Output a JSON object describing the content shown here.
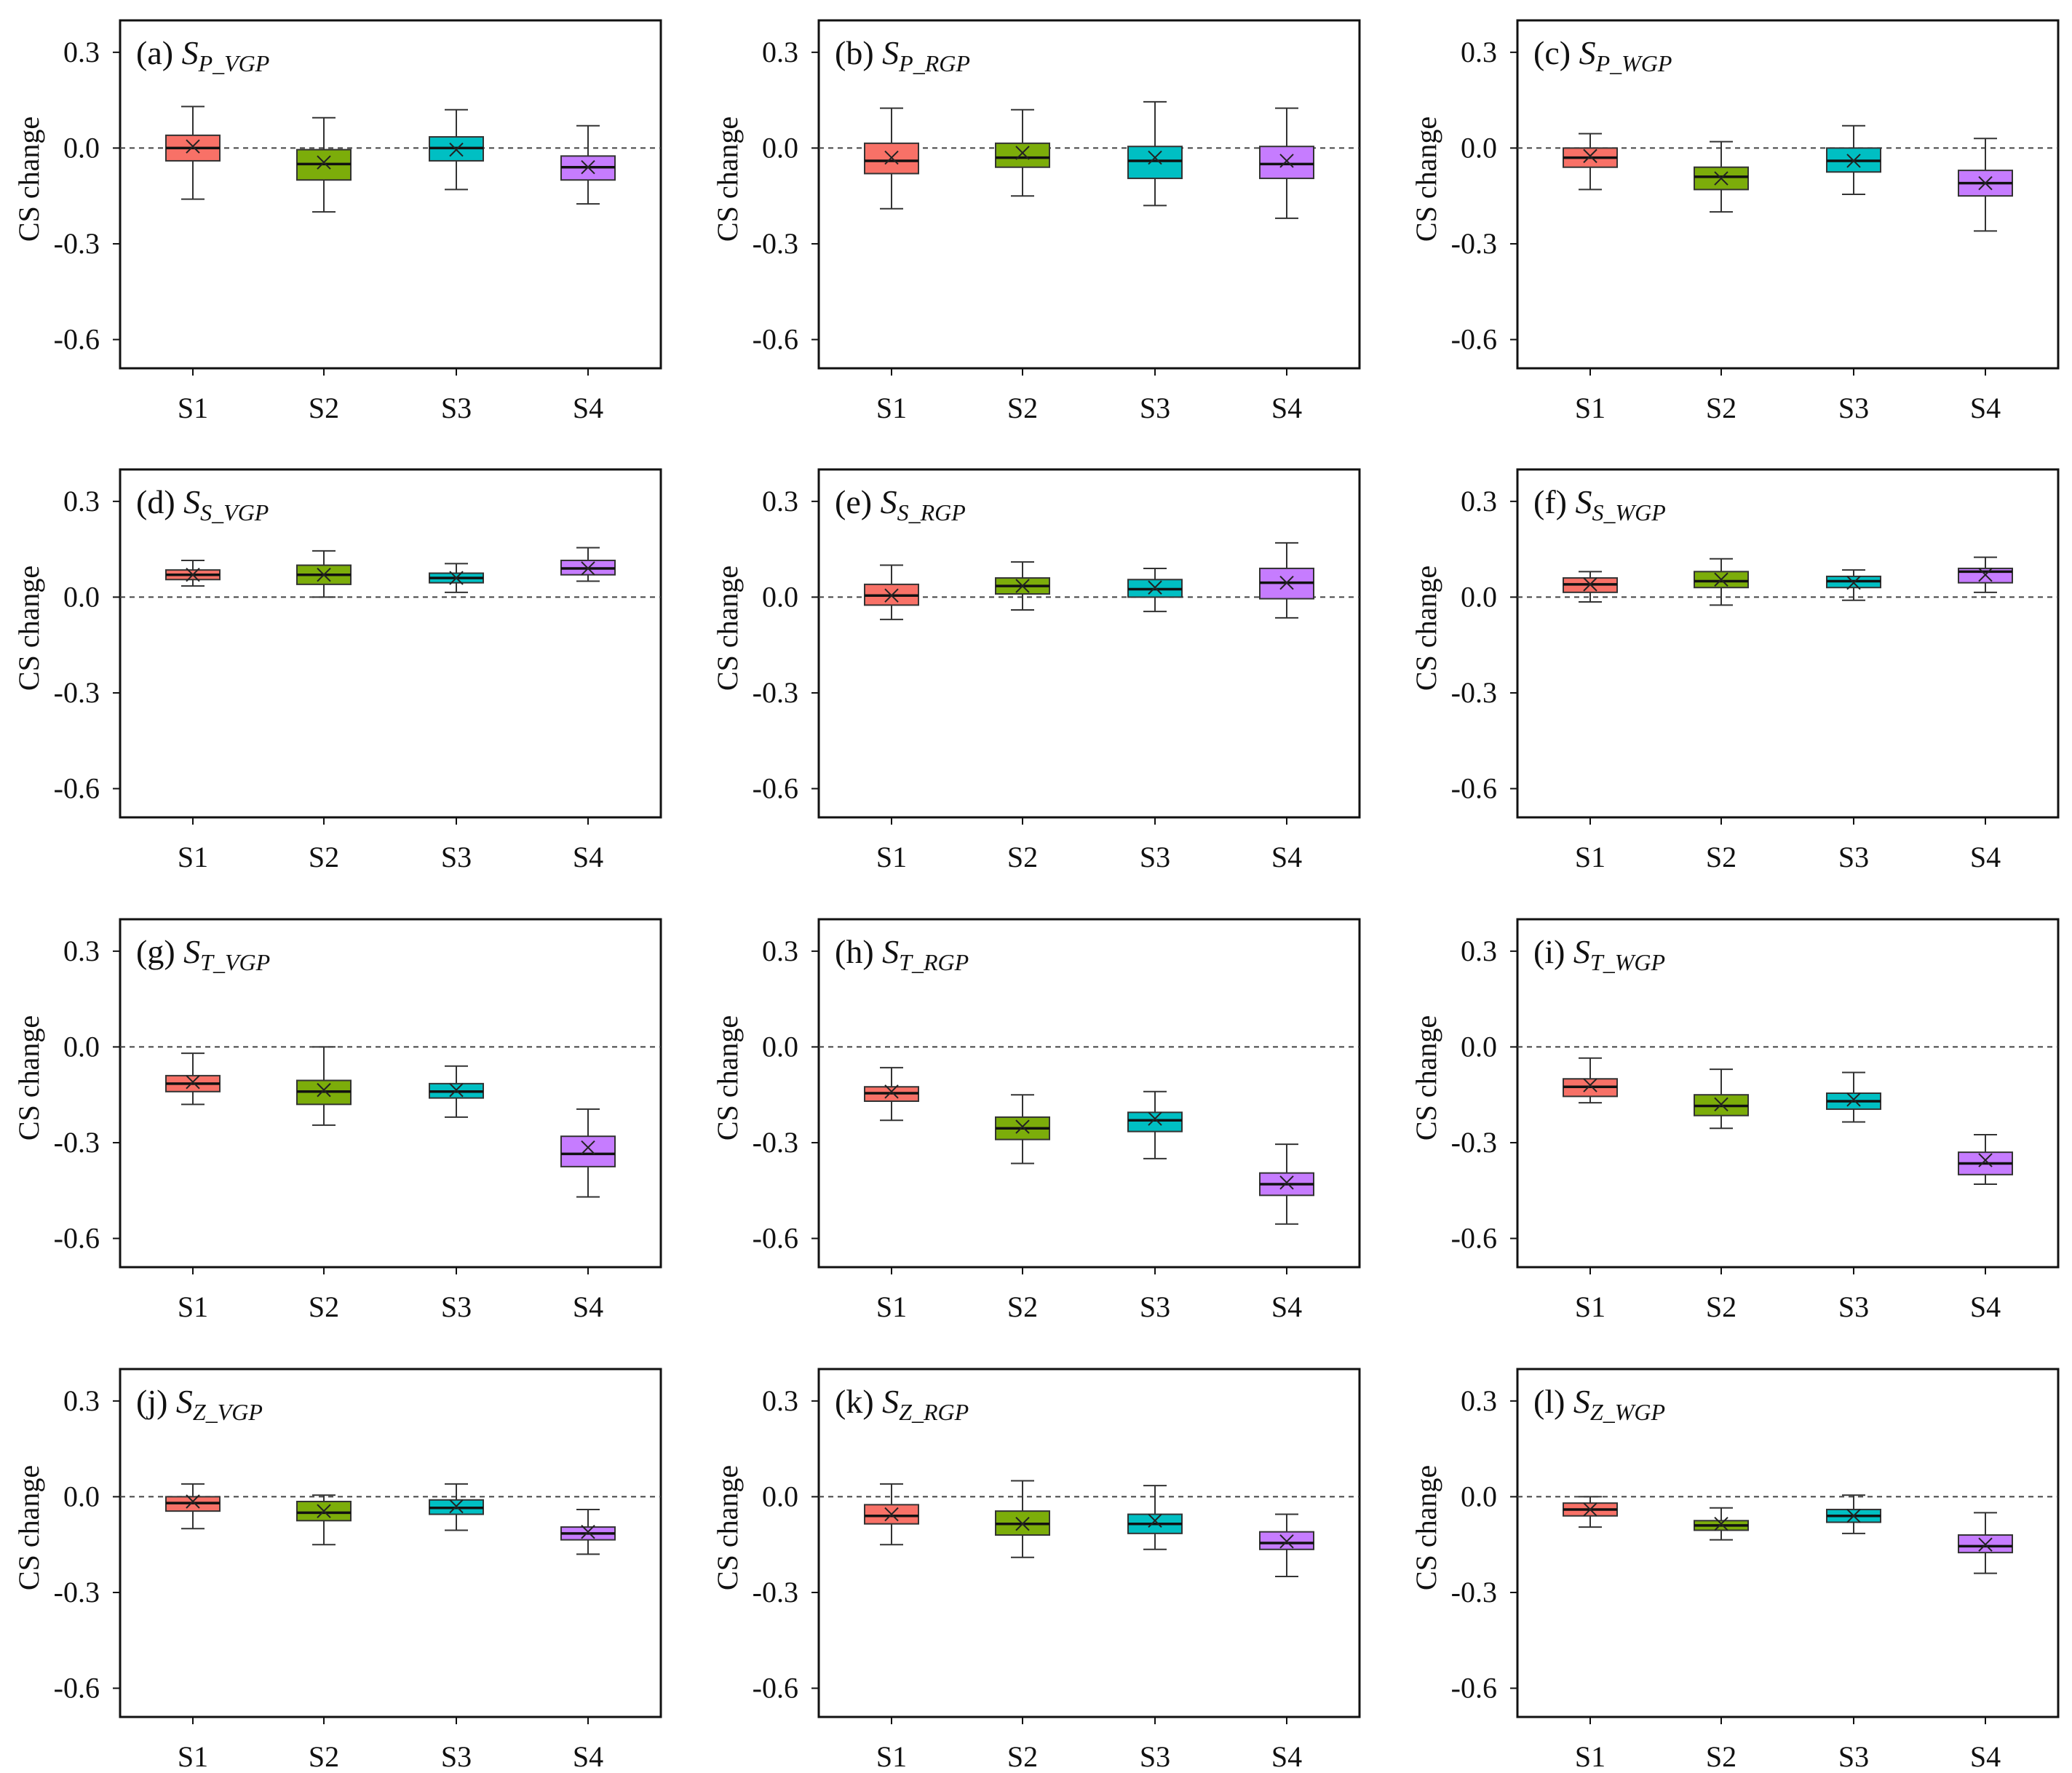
{
  "chart_data": {
    "type": "box",
    "layout": "4x3 grid of box plots",
    "categories": [
      "S1",
      "S2",
      "S3",
      "S4"
    ],
    "series_colors": [
      "#f87167",
      "#7cad0a",
      "#00bfc3",
      "#c67cff"
    ],
    "ylabel": "CS change",
    "yticks": [
      0.3,
      0.0,
      -0.3,
      -0.6
    ],
    "ytick_labels": [
      "0.3",
      "0.0",
      "-0.3",
      "-0.6"
    ],
    "ylim": [
      -0.69,
      0.4
    ],
    "reference_line": 0.0,
    "panels": [
      {
        "id": "a",
        "label": "(a)",
        "symbol": "S",
        "sub": "P_VGP",
        "boxes": [
          {
            "category": "S1",
            "min": -0.16,
            "q1": -0.04,
            "median": 0.0,
            "q3": 0.04,
            "max": 0.13,
            "mean": 0.005
          },
          {
            "category": "S2",
            "min": -0.2,
            "q1": -0.1,
            "median": -0.05,
            "q3": -0.005,
            "max": 0.095,
            "mean": -0.045
          },
          {
            "category": "S3",
            "min": -0.13,
            "q1": -0.04,
            "median": 0.0,
            "q3": 0.035,
            "max": 0.12,
            "mean": -0.005
          },
          {
            "category": "S4",
            "min": -0.175,
            "q1": -0.1,
            "median": -0.06,
            "q3": -0.025,
            "max": 0.07,
            "mean": -0.06
          }
        ]
      },
      {
        "id": "b",
        "label": "(b)",
        "symbol": "S",
        "sub": "P_RGP",
        "boxes": [
          {
            "category": "S1",
            "min": -0.19,
            "q1": -0.08,
            "median": -0.04,
            "q3": 0.015,
            "max": 0.125,
            "mean": -0.03
          },
          {
            "category": "S2",
            "min": -0.15,
            "q1": -0.06,
            "median": -0.03,
            "q3": 0.015,
            "max": 0.12,
            "mean": -0.015
          },
          {
            "category": "S3",
            "min": -0.18,
            "q1": -0.095,
            "median": -0.04,
            "q3": 0.005,
            "max": 0.145,
            "mean": -0.03
          },
          {
            "category": "S4",
            "min": -0.22,
            "q1": -0.095,
            "median": -0.05,
            "q3": 0.005,
            "max": 0.125,
            "mean": -0.04
          }
        ]
      },
      {
        "id": "c",
        "label": "(c)",
        "symbol": "S",
        "sub": "P_WGP",
        "boxes": [
          {
            "category": "S1",
            "min": -0.13,
            "q1": -0.06,
            "median": -0.03,
            "q3": 0.0,
            "max": 0.045,
            "mean": -0.025
          },
          {
            "category": "S2",
            "min": -0.2,
            "q1": -0.13,
            "median": -0.09,
            "q3": -0.06,
            "max": 0.02,
            "mean": -0.095
          },
          {
            "category": "S3",
            "min": -0.145,
            "q1": -0.075,
            "median": -0.04,
            "q3": 0.0,
            "max": 0.07,
            "mean": -0.04
          },
          {
            "category": "S4",
            "min": -0.26,
            "q1": -0.15,
            "median": -0.11,
            "q3": -0.07,
            "max": 0.03,
            "mean": -0.11
          }
        ]
      },
      {
        "id": "d",
        "label": "(d)",
        "symbol": "S",
        "sub": "S_VGP",
        "boxes": [
          {
            "category": "S1",
            "min": 0.035,
            "q1": 0.055,
            "median": 0.07,
            "q3": 0.085,
            "max": 0.115,
            "mean": 0.07
          },
          {
            "category": "S2",
            "min": 0.0,
            "q1": 0.04,
            "median": 0.07,
            "q3": 0.1,
            "max": 0.145,
            "mean": 0.07
          },
          {
            "category": "S3",
            "min": 0.015,
            "q1": 0.045,
            "median": 0.06,
            "q3": 0.075,
            "max": 0.105,
            "mean": 0.06
          },
          {
            "category": "S4",
            "min": 0.05,
            "q1": 0.07,
            "median": 0.09,
            "q3": 0.115,
            "max": 0.155,
            "mean": 0.09
          }
        ]
      },
      {
        "id": "e",
        "label": "(e)",
        "symbol": "S",
        "sub": "S_RGP",
        "boxes": [
          {
            "category": "S1",
            "min": -0.07,
            "q1": -0.025,
            "median": 0.005,
            "q3": 0.04,
            "max": 0.1,
            "mean": 0.005
          },
          {
            "category": "S2",
            "min": -0.04,
            "q1": 0.01,
            "median": 0.035,
            "q3": 0.06,
            "max": 0.11,
            "mean": 0.035
          },
          {
            "category": "S3",
            "min": -0.045,
            "q1": 0.0,
            "median": 0.025,
            "q3": 0.055,
            "max": 0.09,
            "mean": 0.03
          },
          {
            "category": "S4",
            "min": -0.065,
            "q1": -0.005,
            "median": 0.045,
            "q3": 0.09,
            "max": 0.17,
            "mean": 0.045
          }
        ]
      },
      {
        "id": "f",
        "label": "(f)",
        "symbol": "S",
        "sub": "S_WGP",
        "boxes": [
          {
            "category": "S1",
            "min": -0.015,
            "q1": 0.015,
            "median": 0.04,
            "q3": 0.06,
            "max": 0.08,
            "mean": 0.04
          },
          {
            "category": "S2",
            "min": -0.025,
            "q1": 0.03,
            "median": 0.05,
            "q3": 0.08,
            "max": 0.12,
            "mean": 0.055
          },
          {
            "category": "S3",
            "min": -0.01,
            "q1": 0.03,
            "median": 0.05,
            "q3": 0.065,
            "max": 0.085,
            "mean": 0.045
          },
          {
            "category": "S4",
            "min": 0.015,
            "q1": 0.045,
            "median": 0.08,
            "q3": 0.09,
            "max": 0.125,
            "mean": 0.07
          }
        ]
      },
      {
        "id": "g",
        "label": "(g)",
        "symbol": "S",
        "sub": "T_VGP",
        "boxes": [
          {
            "category": "S1",
            "min": -0.18,
            "q1": -0.14,
            "median": -0.115,
            "q3": -0.09,
            "max": -0.02,
            "mean": -0.11
          },
          {
            "category": "S2",
            "min": -0.245,
            "q1": -0.18,
            "median": -0.14,
            "q3": -0.105,
            "max": 0.0,
            "mean": -0.135
          },
          {
            "category": "S3",
            "min": -0.22,
            "q1": -0.16,
            "median": -0.14,
            "q3": -0.115,
            "max": -0.06,
            "mean": -0.135
          },
          {
            "category": "S4",
            "min": -0.47,
            "q1": -0.375,
            "median": -0.335,
            "q3": -0.28,
            "max": -0.195,
            "mean": -0.315
          }
        ]
      },
      {
        "id": "h",
        "label": "(h)",
        "symbol": "S",
        "sub": "T_RGP",
        "boxes": [
          {
            "category": "S1",
            "min": -0.23,
            "q1": -0.17,
            "median": -0.145,
            "q3": -0.125,
            "max": -0.065,
            "mean": -0.14
          },
          {
            "category": "S2",
            "min": -0.365,
            "q1": -0.29,
            "median": -0.255,
            "q3": -0.22,
            "max": -0.15,
            "mean": -0.25
          },
          {
            "category": "S3",
            "min": -0.35,
            "q1": -0.265,
            "median": -0.23,
            "q3": -0.205,
            "max": -0.14,
            "mean": -0.225
          },
          {
            "category": "S4",
            "min": -0.555,
            "q1": -0.465,
            "median": -0.43,
            "q3": -0.395,
            "max": -0.305,
            "mean": -0.425
          }
        ]
      },
      {
        "id": "i",
        "label": "(i)",
        "symbol": "S",
        "sub": "T_WGP",
        "boxes": [
          {
            "category": "S1",
            "min": -0.175,
            "q1": -0.155,
            "median": -0.125,
            "q3": -0.1,
            "max": -0.035,
            "mean": -0.12
          },
          {
            "category": "S2",
            "min": -0.255,
            "q1": -0.215,
            "median": -0.185,
            "q3": -0.15,
            "max": -0.07,
            "mean": -0.18
          },
          {
            "category": "S3",
            "min": -0.235,
            "q1": -0.195,
            "median": -0.17,
            "q3": -0.145,
            "max": -0.08,
            "mean": -0.165
          },
          {
            "category": "S4",
            "min": -0.43,
            "q1": -0.4,
            "median": -0.365,
            "q3": -0.33,
            "max": -0.275,
            "mean": -0.355
          }
        ]
      },
      {
        "id": "j",
        "label": "(j)",
        "symbol": "S",
        "sub": "Z_VGP",
        "boxes": [
          {
            "category": "S1",
            "min": -0.1,
            "q1": -0.045,
            "median": -0.02,
            "q3": 0.0,
            "max": 0.04,
            "mean": -0.015
          },
          {
            "category": "S2",
            "min": -0.15,
            "q1": -0.075,
            "median": -0.05,
            "q3": -0.015,
            "max": 0.005,
            "mean": -0.045
          },
          {
            "category": "S3",
            "min": -0.105,
            "q1": -0.055,
            "median": -0.035,
            "q3": -0.01,
            "max": 0.04,
            "mean": -0.03
          },
          {
            "category": "S4",
            "min": -0.18,
            "q1": -0.135,
            "median": -0.115,
            "q3": -0.095,
            "max": -0.04,
            "mean": -0.11
          }
        ]
      },
      {
        "id": "k",
        "label": "(k)",
        "symbol": "S",
        "sub": "Z_RGP",
        "boxes": [
          {
            "category": "S1",
            "min": -0.15,
            "q1": -0.085,
            "median": -0.06,
            "q3": -0.025,
            "max": 0.04,
            "mean": -0.055
          },
          {
            "category": "S2",
            "min": -0.19,
            "q1": -0.12,
            "median": -0.085,
            "q3": -0.045,
            "max": 0.05,
            "mean": -0.085
          },
          {
            "category": "S3",
            "min": -0.165,
            "q1": -0.115,
            "median": -0.085,
            "q3": -0.055,
            "max": 0.035,
            "mean": -0.075
          },
          {
            "category": "S4",
            "min": -0.25,
            "q1": -0.165,
            "median": -0.145,
            "q3": -0.11,
            "max": -0.055,
            "mean": -0.14
          }
        ]
      },
      {
        "id": "l",
        "label": "(l)",
        "symbol": "S",
        "sub": "Z_WGP",
        "boxes": [
          {
            "category": "S1",
            "min": -0.095,
            "q1": -0.06,
            "median": -0.04,
            "q3": -0.02,
            "max": 0.0,
            "mean": -0.04
          },
          {
            "category": "S2",
            "min": -0.135,
            "q1": -0.105,
            "median": -0.09,
            "q3": -0.075,
            "max": -0.035,
            "mean": -0.085
          },
          {
            "category": "S3",
            "min": -0.115,
            "q1": -0.08,
            "median": -0.06,
            "q3": -0.04,
            "max": 0.005,
            "mean": -0.06
          },
          {
            "category": "S4",
            "min": -0.24,
            "q1": -0.175,
            "median": -0.155,
            "q3": -0.12,
            "max": -0.05,
            "mean": -0.15
          }
        ]
      }
    ]
  }
}
